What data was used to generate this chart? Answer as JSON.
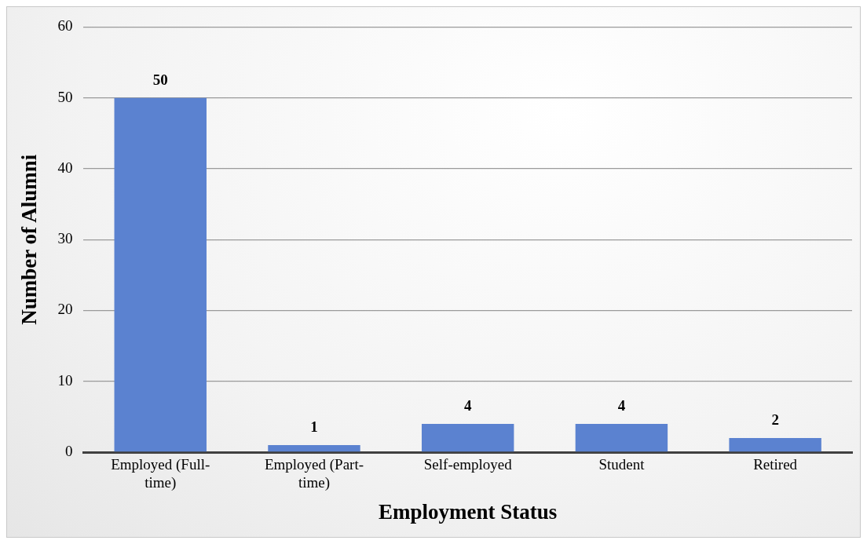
{
  "chart_data": {
    "type": "bar",
    "xlabel": "Employment Status",
    "ylabel": "Number of Alumni",
    "categories": [
      "Employed (Full-time)",
      "Employed (Part-time)",
      "Self-employed",
      "Student",
      "Retired"
    ],
    "values": [
      50,
      1,
      4,
      4,
      2
    ],
    "color": "#5b82d0",
    "ylim": [
      0,
      60
    ],
    "yticks": [
      0,
      10,
      20,
      30,
      40,
      50,
      60
    ],
    "grid": "y",
    "data_labels": true,
    "legend": false
  }
}
